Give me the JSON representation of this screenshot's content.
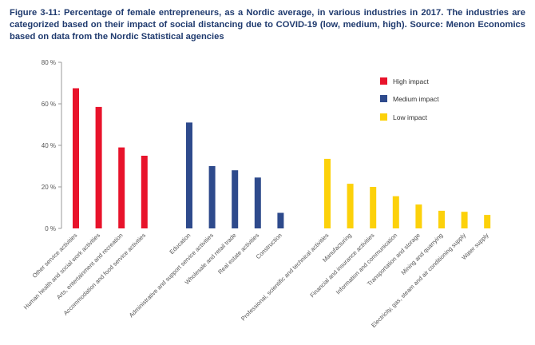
{
  "caption": "Figure 3-11: Percentage of female entrepreneurs, as a Nordic average, in various industries in 2017. The industries are categorized based on their impact of social distancing due to COVID-19 (low, medium, high). Source: Menon Economics based on data from the Nordic Statistical agencies",
  "chart_data": {
    "type": "bar",
    "title": "",
    "xlabel": "",
    "ylabel": "",
    "ylim": [
      0,
      80
    ],
    "yticks": [
      0,
      20,
      40,
      60,
      80
    ],
    "ytick_labels": [
      "0 %",
      "20 %",
      "40 %",
      "60 %",
      "80 %"
    ],
    "grid": false,
    "legend_position": "top-right",
    "series": [
      {
        "name": "High impact",
        "color": "#e8132b",
        "categories": [
          "Other service activities",
          "Human health and social work activities",
          "Arts, entertainment and recreation",
          "Accommodation and food service activities"
        ],
        "values": [
          67.5,
          58.5,
          39,
          35
        ]
      },
      {
        "name": "Medium impact",
        "color": "#2e4a8c",
        "categories": [
          "Education",
          "Administrative and support service activities",
          "Wholesale and retail trade",
          "Real estate activities",
          "Construction"
        ],
        "values": [
          51,
          30,
          28,
          24.5,
          7.5
        ]
      },
      {
        "name": "Low impact",
        "color": "#fcd10a",
        "categories": [
          "Professional, scientific and technical activities",
          "Manufacturing",
          "Financial and insurance activities",
          "Information and communication",
          "Transportation and storage",
          "Mining and quarrying",
          "Electricity, gas, steam and air conditioning supply",
          "Water supply"
        ],
        "values": [
          33.5,
          21.5,
          20,
          15.5,
          11.5,
          8.5,
          8,
          6.5
        ]
      }
    ]
  }
}
